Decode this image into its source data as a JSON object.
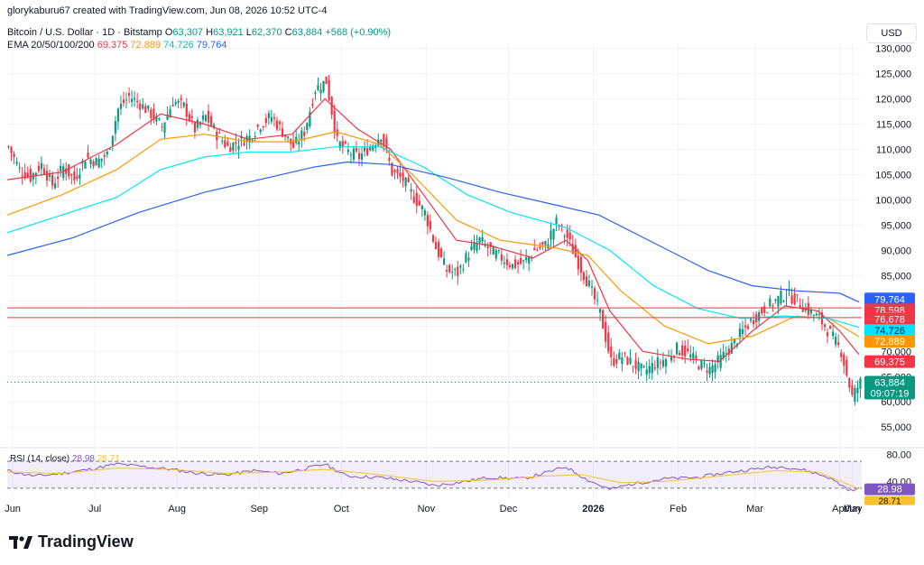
{
  "creator_line": "glorykaburu67 created with TradingView.com, Jun 08, 2026 10:52 UTC-4",
  "symbol_line": {
    "name": "Bitcoin / U.S. Dollar · 1D · Bitstamp",
    "o_label": "O",
    "o": "63,307",
    "h_label": "H",
    "h": "63,921",
    "l_label": "L",
    "l": "62,370",
    "c_label": "C",
    "c": "63,884",
    "change": "+568 (+0.90%)"
  },
  "ema_line": {
    "label": "EMA 20/50/100/200",
    "values": [
      "69,375",
      "72,889",
      "74,726",
      "79,764"
    ]
  },
  "currency_button": "USD",
  "rsi_label": "RSI (14, close)",
  "rsi_values": [
    "28.98",
    "28.71"
  ],
  "brand": "TradingView",
  "colors": {
    "up": "#089981",
    "down": "#f23645",
    "ema20": "#f23645",
    "ema50": "#ff9800",
    "ema100": "#00e5ff",
    "ema200": "#2962ff",
    "rsi": "#7e57c2",
    "rsi_ma": "#fbc02d",
    "hline": "#f23645"
  },
  "chart_data": [
    {
      "type": "candlestick",
      "title": "Bitcoin / U.S. Dollar · 1D · Bitstamp",
      "x_tick_labels": [
        "Jun",
        "Jul",
        "Aug",
        "Sep",
        "Oct",
        "Nov",
        "Dec",
        "2026",
        "Feb",
        "Mar",
        "Apr",
        "May",
        "Jun"
      ],
      "y_tick_labels": [
        "55,000",
        "60,000",
        "65,000",
        "70,000",
        "75,000",
        "80,000",
        "85,000",
        "90,000",
        "95,000",
        "100,000",
        "105,000",
        "110,000",
        "115,000",
        "120,000",
        "125,000",
        "130,000"
      ],
      "ylim": [
        52000,
        131000
      ],
      "close_path": [
        [
          0,
          110500
        ],
        [
          4,
          106000
        ],
        [
          8,
          104500
        ],
        [
          12,
          107000
        ],
        [
          16,
          103000
        ],
        [
          20,
          106500
        ],
        [
          24,
          104000
        ],
        [
          28,
          108500
        ],
        [
          32,
          107500
        ],
        [
          36,
          109000
        ],
        [
          40,
          118000
        ],
        [
          44,
          120500
        ],
        [
          48,
          119000
        ],
        [
          52,
          117000
        ],
        [
          56,
          114500
        ],
        [
          60,
          119500
        ],
        [
          64,
          118500
        ],
        [
          68,
          114000
        ],
        [
          72,
          116500
        ],
        [
          76,
          113000
        ],
        [
          80,
          110500
        ],
        [
          84,
          111500
        ],
        [
          88,
          112500
        ],
        [
          92,
          115000
        ],
        [
          96,
          116500
        ],
        [
          100,
          113500
        ],
        [
          104,
          110500
        ],
        [
          108,
          113500
        ],
        [
          112,
          122000
        ],
        [
          116,
          123500
        ],
        [
          120,
          111500
        ],
        [
          124,
          109500
        ],
        [
          128,
          108500
        ],
        [
          132,
          110500
        ],
        [
          136,
          113000
        ],
        [
          140,
          105500
        ],
        [
          144,
          104000
        ],
        [
          148,
          100500
        ],
        [
          152,
          97500
        ],
        [
          156,
          90500
        ],
        [
          160,
          86000
        ],
        [
          164,
          85500
        ],
        [
          168,
          89500
        ],
        [
          172,
          92000
        ],
        [
          176,
          90000
        ],
        [
          180,
          88500
        ],
        [
          184,
          87000
        ],
        [
          188,
          87500
        ],
        [
          192,
          90000
        ],
        [
          196,
          91000
        ],
        [
          200,
          95500
        ],
        [
          204,
          92500
        ],
        [
          208,
          87500
        ],
        [
          212,
          83000
        ],
        [
          216,
          77500
        ],
        [
          220,
          68000
        ],
        [
          224,
          69000
        ],
        [
          228,
          67500
        ],
        [
          232,
          66000
        ],
        [
          236,
          67500
        ],
        [
          240,
          68500
        ],
        [
          244,
          70500
        ],
        [
          248,
          69500
        ],
        [
          252,
          67500
        ],
        [
          256,
          66500
        ],
        [
          260,
          68500
        ],
        [
          264,
          71000
        ],
        [
          268,
          74000
        ],
        [
          272,
          76500
        ],
        [
          276,
          78500
        ],
        [
          280,
          80000
        ],
        [
          284,
          81500
        ],
        [
          288,
          80000
        ],
        [
          292,
          78000
        ],
        [
          296,
          76500
        ],
        [
          300,
          73500
        ],
        [
          304,
          70000
        ],
        [
          308,
          61000
        ],
        [
          311,
          63884
        ]
      ],
      "last_price": "63,884",
      "countdown": "09:07:19",
      "horizontal_lines": [
        78598,
        76678
      ],
      "horizontal_line_labels": [
        "78,598",
        "76,678"
      ],
      "dotted_last_price_line": 63884,
      "ema": [
        {
          "name": "EMA 20",
          "color": "#f23645",
          "last": "69,375",
          "path": [
            [
              0,
              104000
            ],
            [
              20,
              105500
            ],
            [
              40,
              111000
            ],
            [
              56,
              117000
            ],
            [
              72,
              115000
            ],
            [
              88,
              112000
            ],
            [
              104,
              113000
            ],
            [
              116,
              120000
            ],
            [
              128,
              114000
            ],
            [
              140,
              110000
            ],
            [
              152,
              101000
            ],
            [
              164,
              92000
            ],
            [
              176,
              91000
            ],
            [
              192,
              88500
            ],
            [
              204,
              92000
            ],
            [
              212,
              88000
            ],
            [
              220,
              78000
            ],
            [
              232,
              70000
            ],
            [
              248,
              68500
            ],
            [
              260,
              68000
            ],
            [
              272,
              74000
            ],
            [
              284,
              79000
            ],
            [
              296,
              78000
            ],
            [
              304,
              74000
            ],
            [
              311,
              69375
            ]
          ]
        },
        {
          "name": "EMA 50",
          "color": "#ff9800",
          "last": "72,889",
          "path": [
            [
              0,
              97000
            ],
            [
              20,
              101000
            ],
            [
              40,
              106000
            ],
            [
              56,
              112000
            ],
            [
              72,
              113000
            ],
            [
              88,
              111500
            ],
            [
              104,
              111500
            ],
            [
              120,
              113500
            ],
            [
              136,
              111000
            ],
            [
              148,
              105000
            ],
            [
              164,
              96000
            ],
            [
              180,
              92000
            ],
            [
              200,
              90500
            ],
            [
              212,
              89000
            ],
            [
              224,
              82000
            ],
            [
              240,
              75000
            ],
            [
              256,
              71500
            ],
            [
              272,
              73000
            ],
            [
              288,
              77000
            ],
            [
              300,
              76500
            ],
            [
              311,
              72889
            ]
          ]
        },
        {
          "name": "EMA 100",
          "color": "#00e5ff",
          "last": "74,726",
          "path": [
            [
              0,
              93500
            ],
            [
              20,
              97000
            ],
            [
              40,
              100500
            ],
            [
              56,
              106000
            ],
            [
              72,
              108500
            ],
            [
              88,
              109500
            ],
            [
              104,
              109500
            ],
            [
              120,
              110500
            ],
            [
              136,
              110500
            ],
            [
              152,
              106500
            ],
            [
              168,
              101000
            ],
            [
              184,
              97500
            ],
            [
              204,
              94500
            ],
            [
              220,
              90000
            ],
            [
              236,
              83000
            ],
            [
              252,
              78500
            ],
            [
              268,
              76500
            ],
            [
              284,
              77000
            ],
            [
              300,
              76500
            ],
            [
              311,
              74726
            ]
          ]
        },
        {
          "name": "EMA 200",
          "color": "#2962ff",
          "last": "79,764",
          "path": [
            [
              0,
              89000
            ],
            [
              24,
              92500
            ],
            [
              48,
              97500
            ],
            [
              72,
              101500
            ],
            [
              96,
              104500
            ],
            [
              112,
              106500
            ],
            [
              124,
              107500
            ],
            [
              140,
              107000
            ],
            [
              160,
              104500
            ],
            [
              180,
              101500
            ],
            [
              200,
              99000
            ],
            [
              216,
              97000
            ],
            [
              236,
              91500
            ],
            [
              256,
              86000
            ],
            [
              272,
              83000
            ],
            [
              288,
              82000
            ],
            [
              304,
              81500
            ],
            [
              311,
              79764
            ]
          ]
        }
      ]
    },
    {
      "type": "line",
      "title": "RSI (14, close)",
      "y_tick_labels": [
        "40.00",
        "80.00"
      ],
      "ylim": [
        15,
        85
      ],
      "bands": [
        30,
        70
      ],
      "series": [
        {
          "name": "RSI",
          "color": "#7e57c2",
          "last": "28.98",
          "path": [
            [
              0,
              56
            ],
            [
              10,
              48
            ],
            [
              20,
              52
            ],
            [
              30,
              58
            ],
            [
              40,
              66
            ],
            [
              50,
              62
            ],
            [
              60,
              58
            ],
            [
              70,
              52
            ],
            [
              80,
              50
            ],
            [
              90,
              56
            ],
            [
              100,
              52
            ],
            [
              110,
              60
            ],
            [
              116,
              66
            ],
            [
              124,
              48
            ],
            [
              136,
              46
            ],
            [
              148,
              40
            ],
            [
              156,
              34
            ],
            [
              164,
              38
            ],
            [
              176,
              46
            ],
            [
              188,
              44
            ],
            [
              196,
              52
            ],
            [
              204,
              62
            ],
            [
              212,
              42
            ],
            [
              220,
              28
            ],
            [
              228,
              36
            ],
            [
              240,
              44
            ],
            [
              252,
              46
            ],
            [
              264,
              54
            ],
            [
              276,
              60
            ],
            [
              284,
              62
            ],
            [
              292,
              56
            ],
            [
              300,
              46
            ],
            [
              308,
              26
            ],
            [
              311,
              29
            ]
          ]
        },
        {
          "name": "RSI MA",
          "color": "#fbc02d",
          "last": "28.71",
          "path": [
            [
              0,
              54
            ],
            [
              20,
              52
            ],
            [
              40,
              60
            ],
            [
              60,
              58
            ],
            [
              80,
              52
            ],
            [
              100,
              54
            ],
            [
              116,
              58
            ],
            [
              136,
              50
            ],
            [
              156,
              40
            ],
            [
              176,
              42
            ],
            [
              196,
              48
            ],
            [
              210,
              50
            ],
            [
              224,
              38
            ],
            [
              240,
              40
            ],
            [
              260,
              48
            ],
            [
              280,
              56
            ],
            [
              296,
              54
            ],
            [
              311,
              29
            ]
          ]
        }
      ]
    }
  ]
}
